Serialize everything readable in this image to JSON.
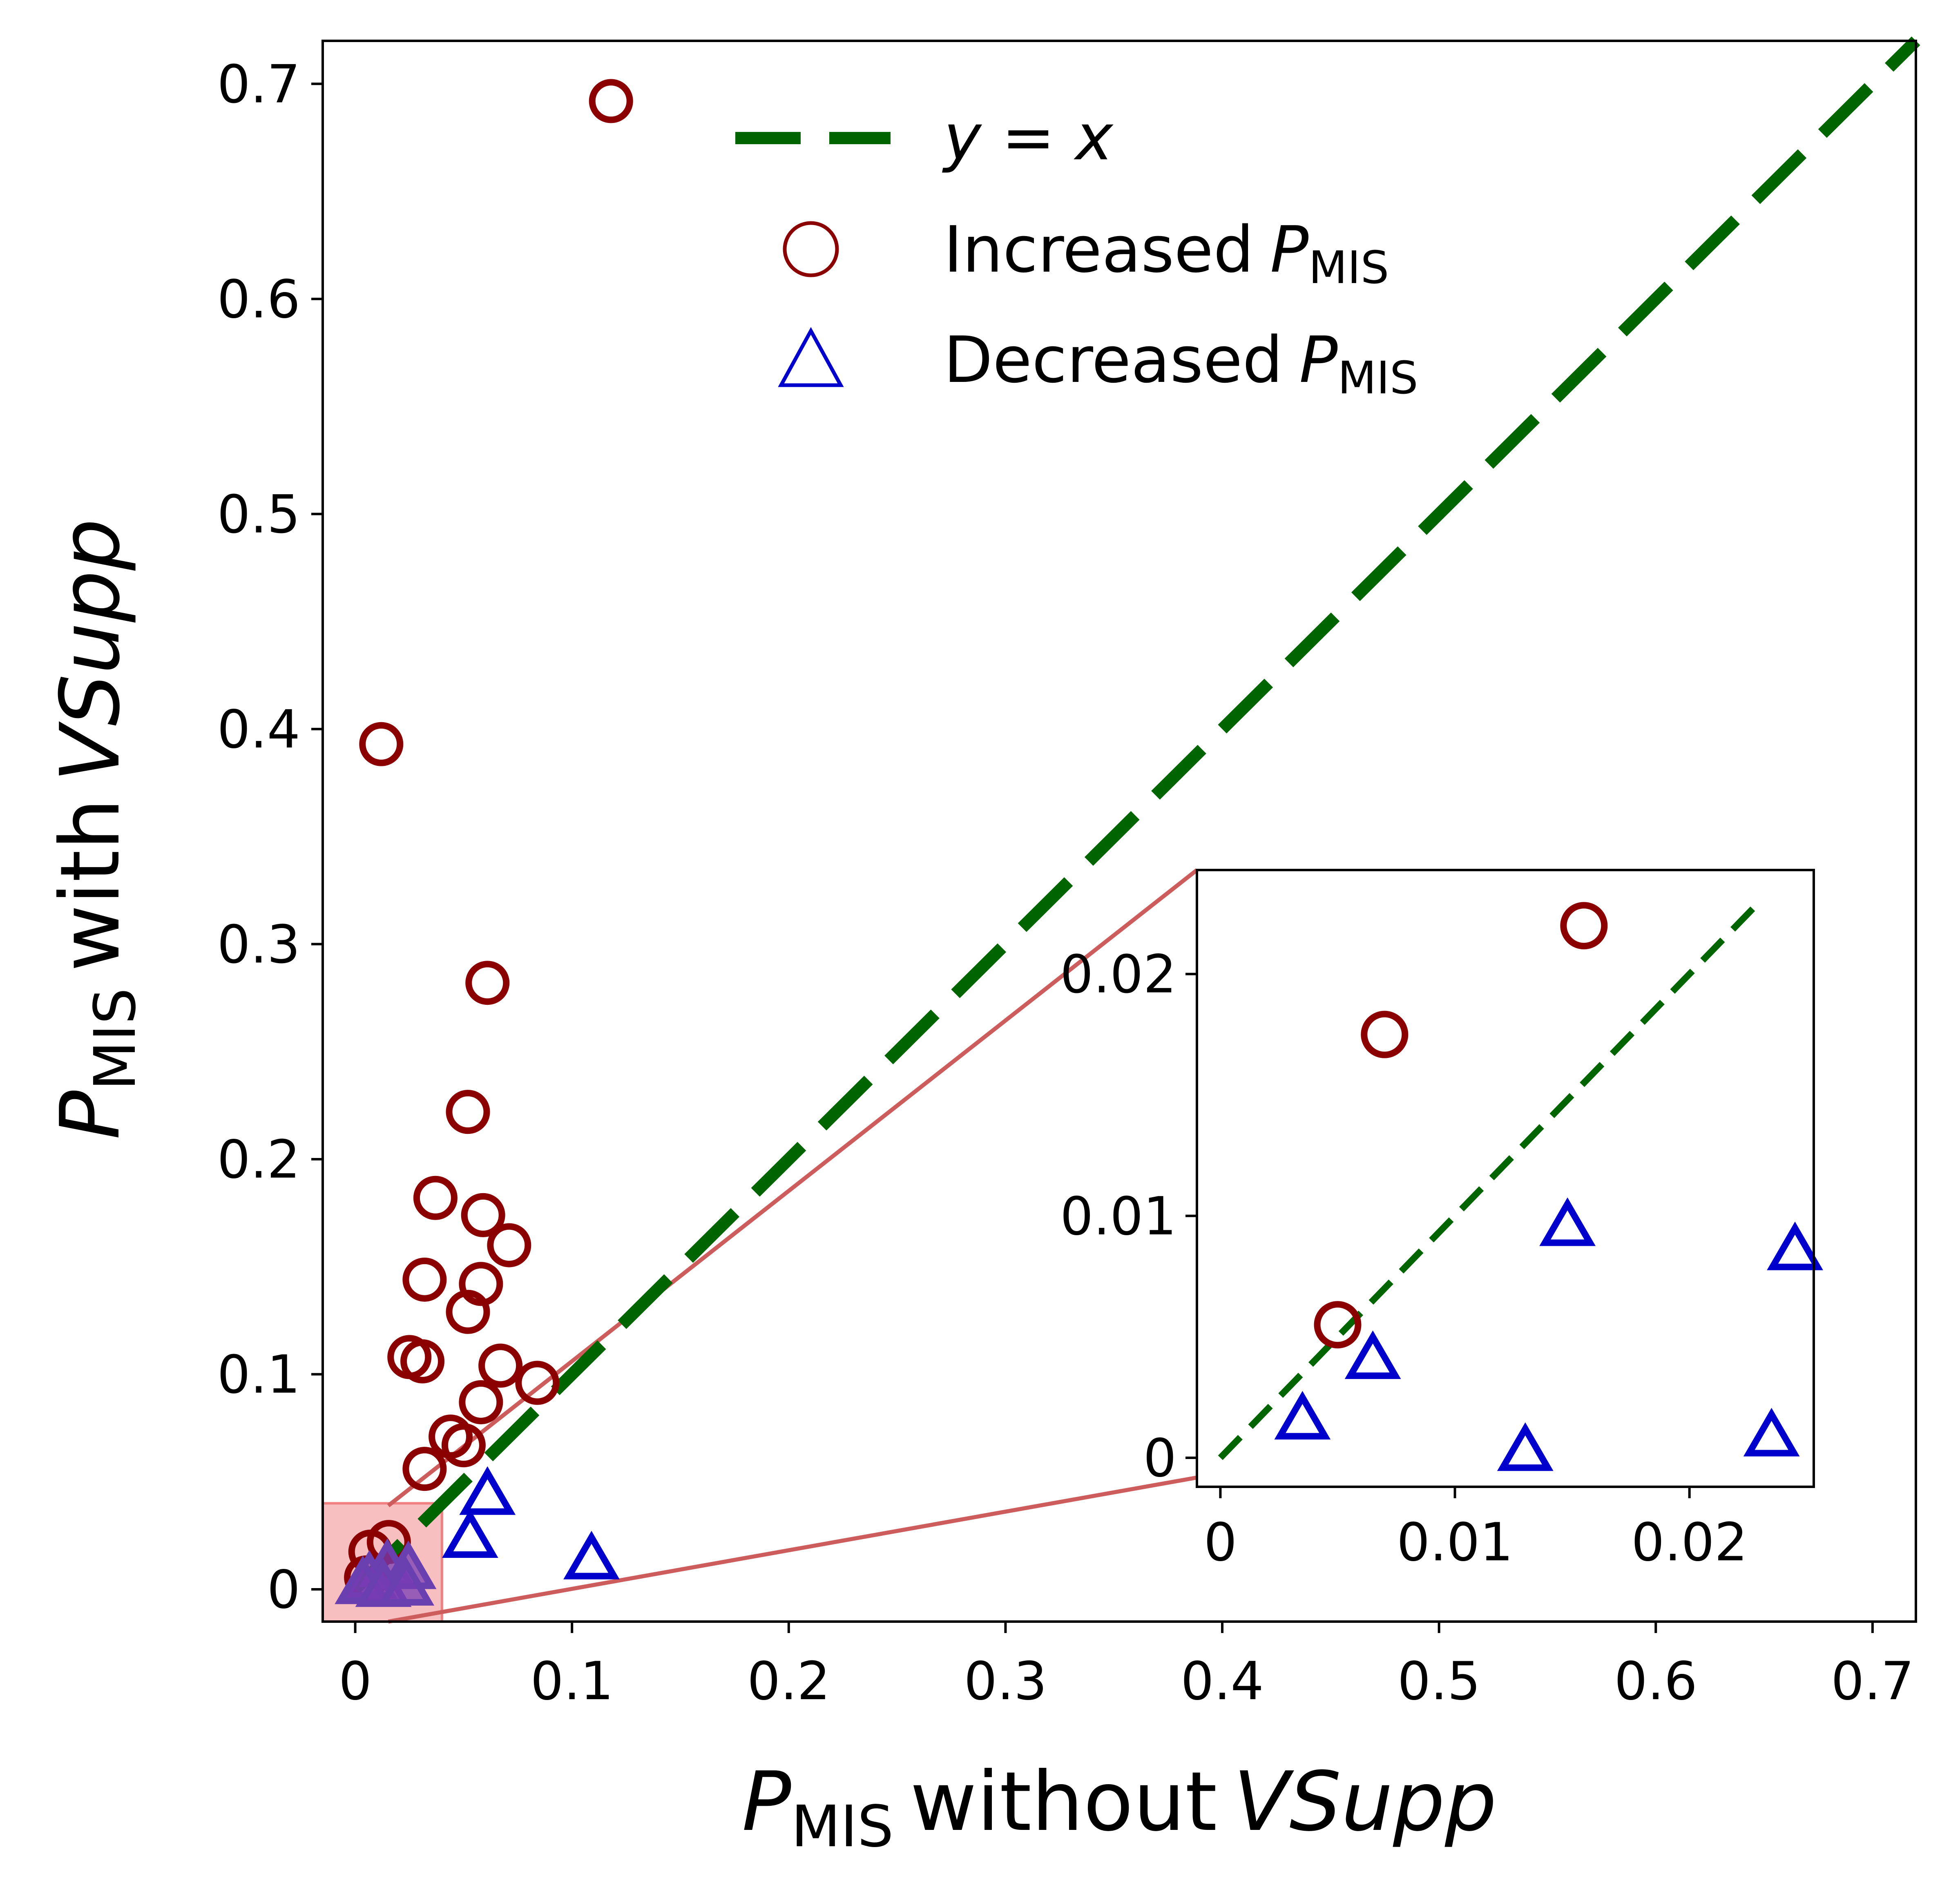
{
  "chart_data": {
    "type": "scatter",
    "xlabel": {
      "symbol": "P",
      "subscript": "MIS",
      "text": "without",
      "italic": "VSupp"
    },
    "ylabel": {
      "symbol": "P",
      "subscript": "MIS",
      "text": "with",
      "italic": "VSupp"
    },
    "xlim": [
      -0.015,
      0.72
    ],
    "ylim": [
      -0.015,
      0.72
    ],
    "xticks": [
      0,
      0.1,
      0.2,
      0.3,
      0.4,
      0.5,
      0.6,
      0.7
    ],
    "xtick_labels": [
      "0",
      "0.1",
      "0.2",
      "0.3",
      "0.4",
      "0.5",
      "0.6",
      "0.7"
    ],
    "yticks": [
      0,
      0.1,
      0.2,
      0.3,
      0.4,
      0.5,
      0.6,
      0.7
    ],
    "ytick_labels": [
      "0",
      "0.1",
      "0.2",
      "0.3",
      "0.4",
      "0.5",
      "0.6",
      "0.7"
    ],
    "reference_line": {
      "name": "y = x",
      "label_left": "y",
      "label_eq": " = ",
      "label_right": "x",
      "color": "#006400"
    },
    "legend": {
      "position": "top-center",
      "entries": [
        {
          "series": "reference",
          "text": "y = x"
        },
        {
          "series": "increased",
          "text": "Increased",
          "symbol": "P",
          "subscript": "MIS"
        },
        {
          "series": "decreased",
          "text": "Decreased",
          "symbol": "P",
          "subscript": "MIS"
        }
      ]
    },
    "series": [
      {
        "name": "Increased P_MIS",
        "marker": "circle",
        "color": "#8b0000",
        "points": [
          [
            0.118,
            0.692
          ],
          [
            0.012,
            0.393
          ],
          [
            0.061,
            0.282
          ],
          [
            0.052,
            0.222
          ],
          [
            0.037,
            0.182
          ],
          [
            0.059,
            0.174
          ],
          [
            0.071,
            0.16
          ],
          [
            0.032,
            0.144
          ],
          [
            0.058,
            0.142
          ],
          [
            0.052,
            0.129
          ],
          [
            0.025,
            0.108
          ],
          [
            0.031,
            0.106
          ],
          [
            0.067,
            0.104
          ],
          [
            0.084,
            0.096
          ],
          [
            0.058,
            0.087
          ],
          [
            0.044,
            0.071
          ],
          [
            0.05,
            0.067
          ],
          [
            0.032,
            0.056
          ],
          [
            0.0155,
            0.022
          ],
          [
            0.007,
            0.0175
          ],
          [
            0.005,
            0.0055
          ]
        ]
      },
      {
        "name": "Decreased P_MIS",
        "marker": "triangle",
        "color": "#0000cd",
        "points": [
          [
            0.061,
            0.043
          ],
          [
            0.053,
            0.023
          ],
          [
            0.109,
            0.013
          ],
          [
            0.0148,
            0.0095
          ],
          [
            0.0245,
            0.0085
          ],
          [
            0.0065,
            0.004
          ],
          [
            0.0035,
            0.0015
          ],
          [
            0.013,
            0.0002
          ],
          [
            0.0235,
            0.0008
          ]
        ]
      }
    ],
    "zoom_region": {
      "x": [
        -0.015,
        0.04
      ],
      "y": [
        -0.015,
        0.04
      ],
      "color": "#f08080"
    },
    "inset": {
      "xlim": [
        -0.001,
        0.0253
      ],
      "ylim": [
        -0.0012,
        0.0243
      ],
      "xticks": [
        0,
        0.01,
        0.02
      ],
      "xtick_labels": [
        "0",
        "0.01",
        "0.02"
      ],
      "yticks": [
        0,
        0.01,
        0.02
      ],
      "ytick_labels": [
        "0",
        "0.01",
        "0.02"
      ],
      "reference_line_x": [
        0,
        0.0228
      ],
      "connector_color": "#cd5c5c"
    }
  }
}
